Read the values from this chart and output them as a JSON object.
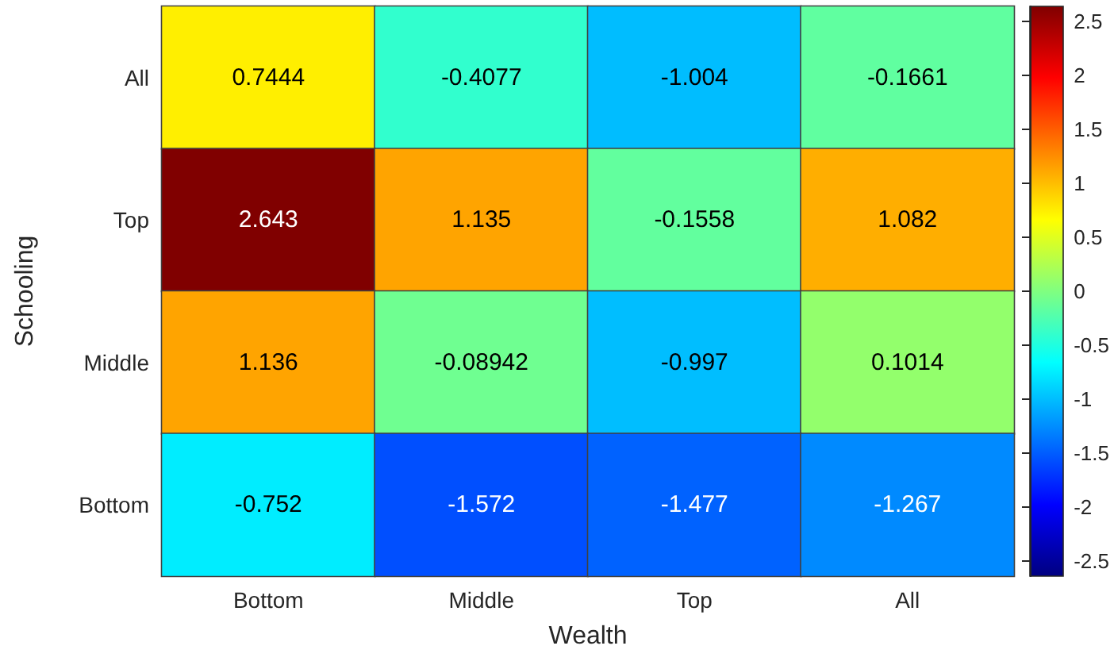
{
  "chart_data": {
    "type": "heatmap",
    "xlabel": "Wealth",
    "ylabel": "Schooling",
    "categories": [
      "Bottom",
      "Middle",
      "Top",
      "All"
    ],
    "y_categories": [
      "All",
      "Top",
      "Middle",
      "Bottom"
    ],
    "cells": [
      [
        0.7444,
        -0.4077,
        -1.004,
        -0.1661
      ],
      [
        2.643,
        1.135,
        -0.1558,
        1.082
      ],
      [
        1.136,
        -0.08942,
        -0.997,
        0.1014
      ],
      [
        -0.752,
        -1.572,
        -1.477,
        -1.267
      ]
    ],
    "data_labels": true,
    "clim": [
      -2.643,
      2.643
    ],
    "cticks": [
      -2.5,
      -2,
      -1.5,
      -1,
      -0.5,
      0,
      0.5,
      1,
      1.5,
      2,
      2.5
    ]
  }
}
